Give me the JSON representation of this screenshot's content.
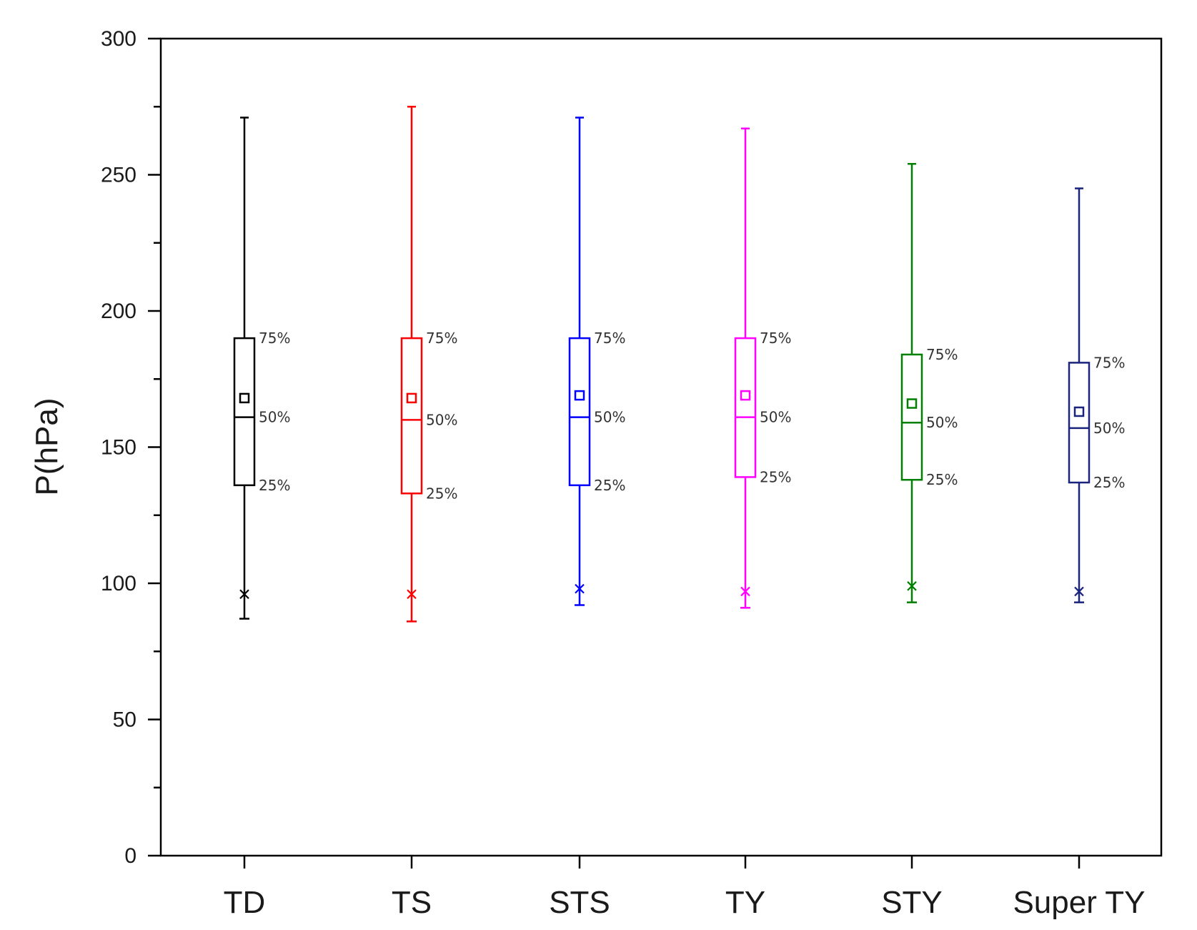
{
  "chart_data": {
    "type": "box",
    "title": "",
    "xlabel": "",
    "ylabel": "P(hPa)",
    "ylim": [
      0,
      300
    ],
    "yticks": [
      0,
      50,
      100,
      150,
      200,
      250,
      300
    ],
    "categories": [
      "TD",
      "TS",
      "STS",
      "TY",
      "STY",
      "Super TY"
    ],
    "percentile_labels": {
      "q1": "25%",
      "median": "50%",
      "q3": "75%"
    },
    "series": [
      {
        "name": "TD",
        "color": "#000000",
        "min": 87,
        "q1": 136,
        "median": 161,
        "q3": 190,
        "max": 271,
        "mean": 168,
        "p1": 96
      },
      {
        "name": "TS",
        "color": "#ff0000",
        "min": 86,
        "q1": 133,
        "median": 160,
        "q3": 190,
        "max": 275,
        "mean": 168,
        "p1": 96
      },
      {
        "name": "STS",
        "color": "#0000ff",
        "min": 92,
        "q1": 136,
        "median": 161,
        "q3": 190,
        "max": 271,
        "mean": 169,
        "p1": 98
      },
      {
        "name": "TY",
        "color": "#ff00ff",
        "min": 91,
        "q1": 139,
        "median": 161,
        "q3": 190,
        "max": 267,
        "mean": 169,
        "p1": 97
      },
      {
        "name": "STY",
        "color": "#008000",
        "min": 93,
        "q1": 138,
        "median": 159,
        "q3": 184,
        "max": 254,
        "mean": 166,
        "p1": 99
      },
      {
        "name": "Super TY",
        "color": "#1a237e",
        "min": 93,
        "q1": 137,
        "median": 157,
        "q3": 181,
        "max": 245,
        "mean": 163,
        "p1": 97
      }
    ]
  }
}
